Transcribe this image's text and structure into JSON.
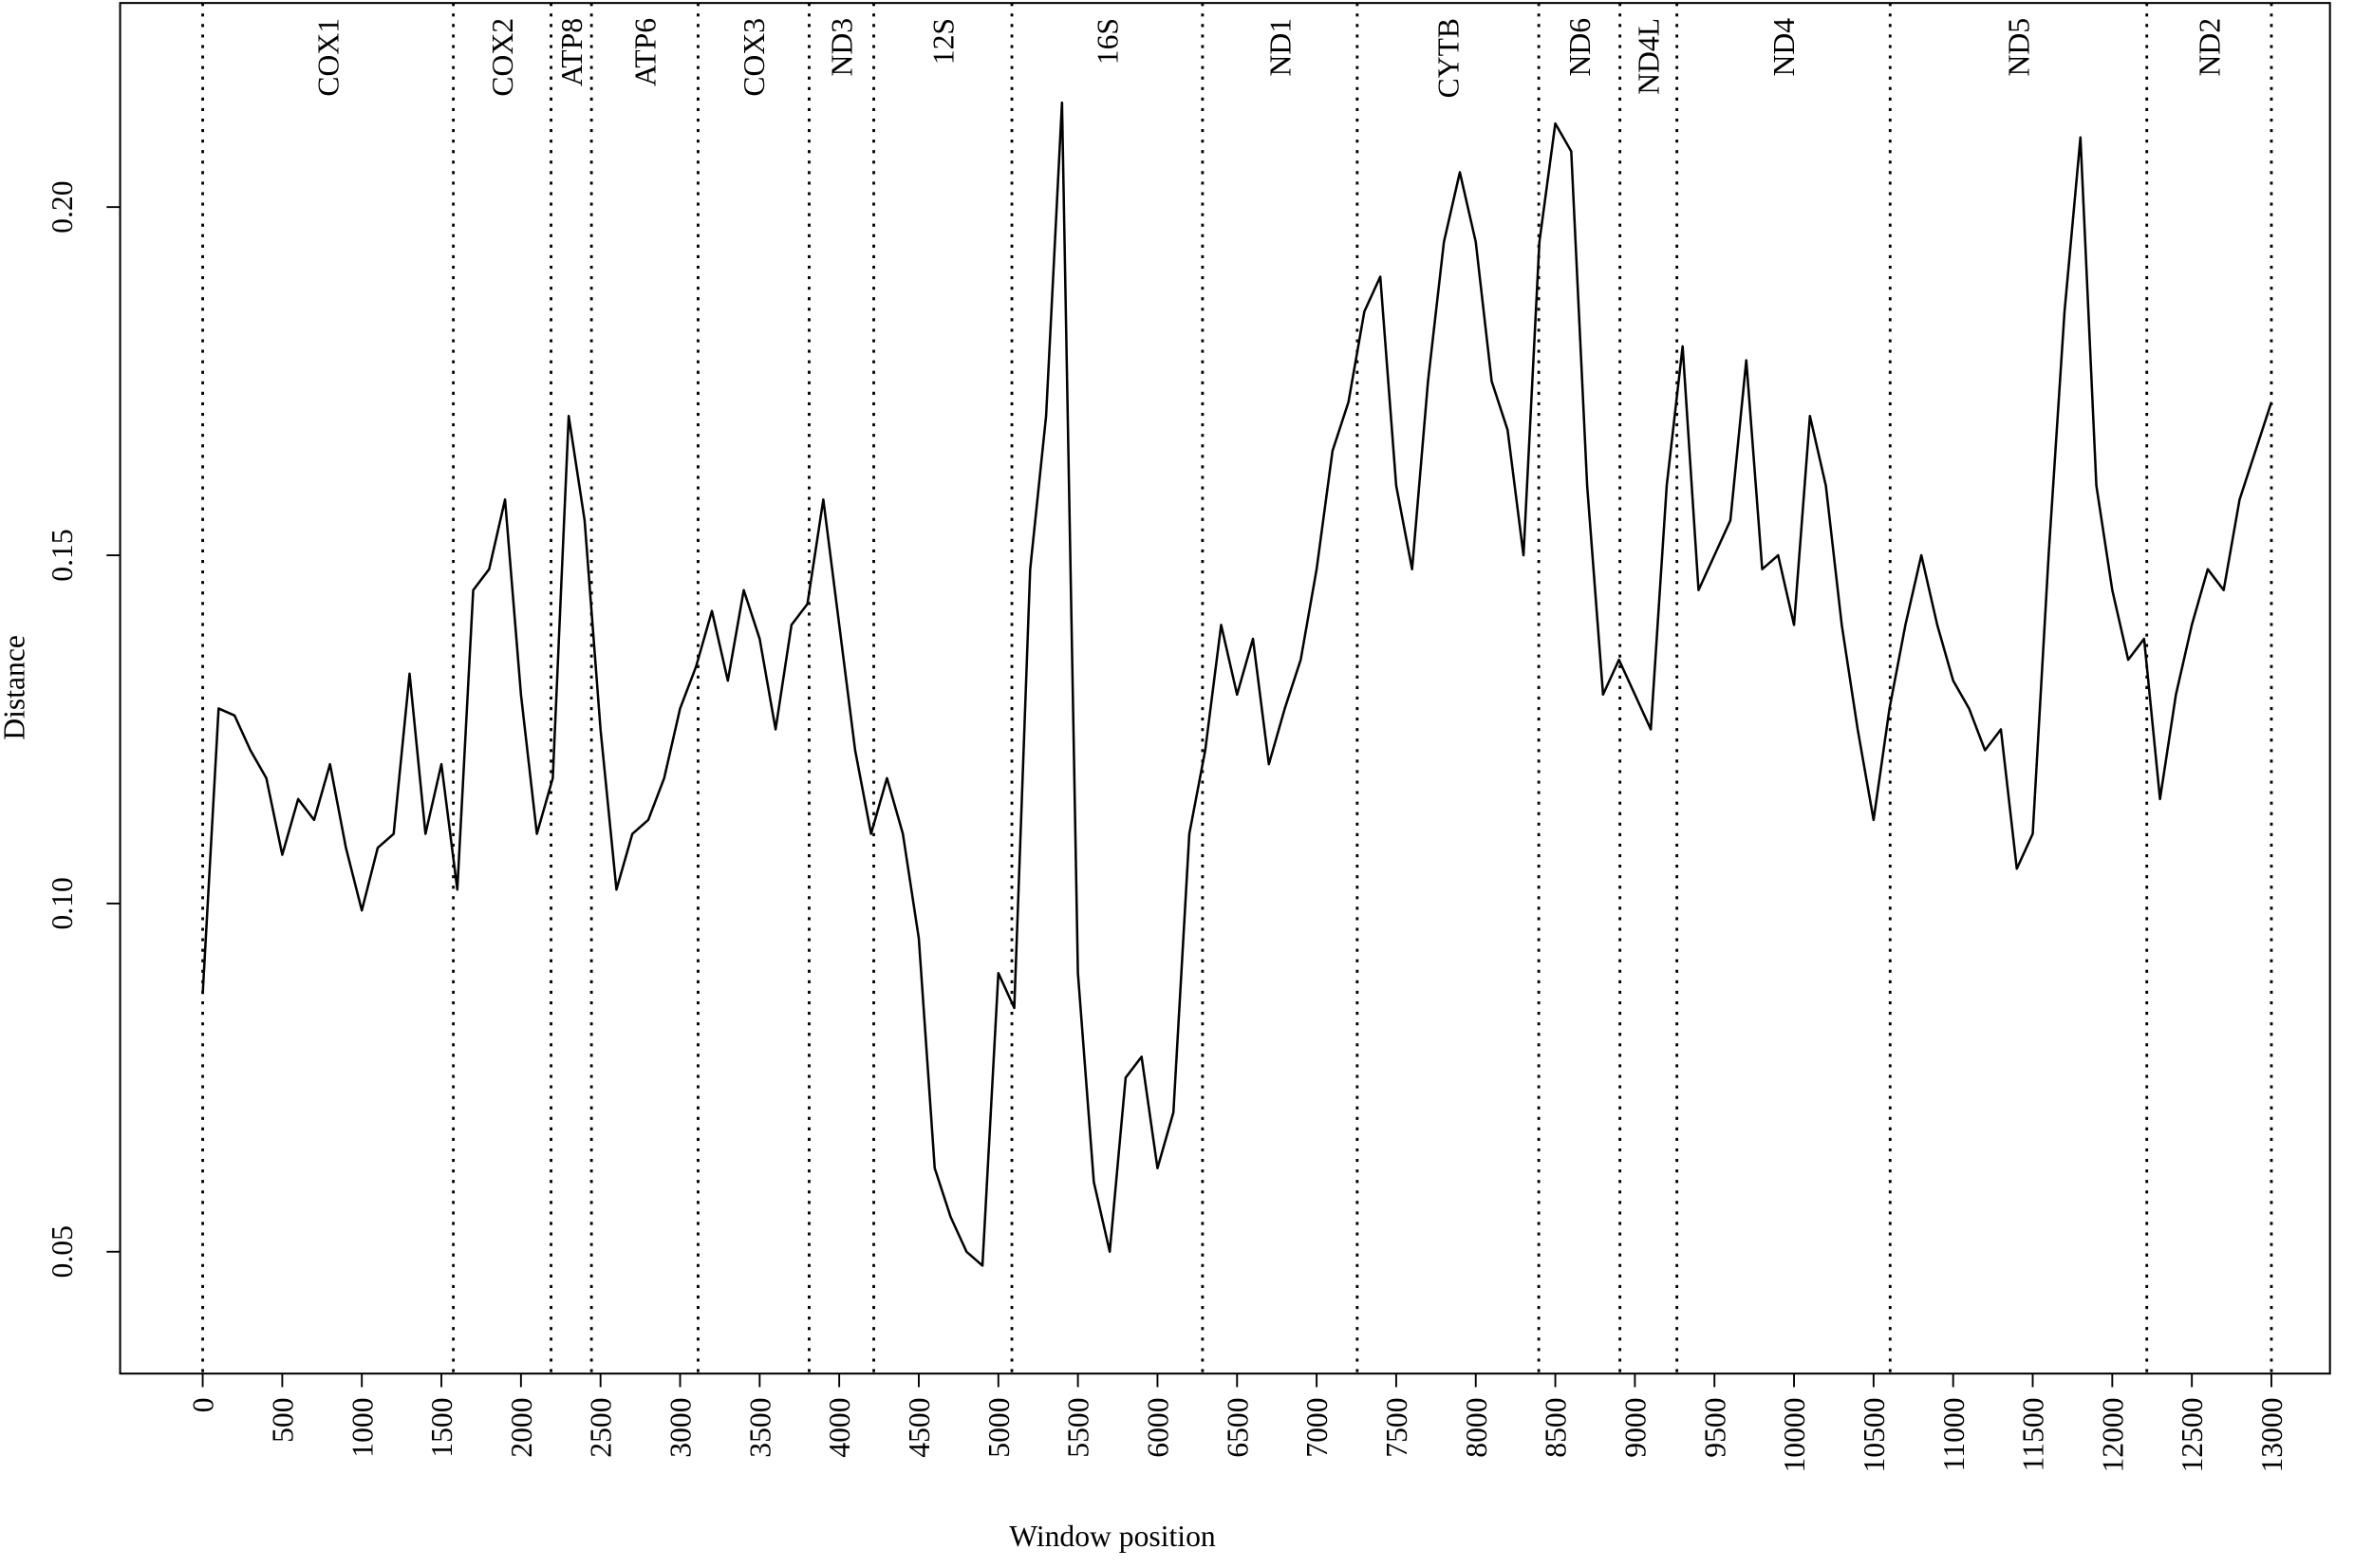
{
  "chart_data": {
    "type": "line",
    "xlabel": "Window position",
    "ylabel": "Distance",
    "color": "#000000",
    "xlim": [
      -519,
      13368
    ],
    "ylim": [
      0.0325,
      0.2293
    ],
    "xticks": [
      0,
      500,
      1000,
      1500,
      2000,
      2500,
      3000,
      3500,
      4000,
      4500,
      5000,
      5500,
      6000,
      6500,
      7000,
      7500,
      8000,
      8500,
      9000,
      9500,
      10000,
      10500,
      11000,
      11500,
      12000,
      12500,
      13000
    ],
    "yticks": [
      0.05,
      {
        "value": 0.1,
        "label": "0.10"
      },
      0.15,
      {
        "value": 0.2,
        "label": "0.20"
      }
    ],
    "boundaries": [
      0,
      1575,
      2189,
      2443,
      3113,
      3811,
      4217,
      5085,
      6283,
      7255,
      8396,
      8906,
      9264,
      10604,
      12217,
      13000
    ],
    "genes": [
      "COX1",
      "COX2",
      "ATP8",
      "ATP6",
      "COX3",
      "ND3",
      "12S",
      "16S",
      "ND1",
      "CYTB",
      "ND6",
      "ND4L",
      "ND4",
      "ND5",
      "ND2"
    ],
    "x": [
      0,
      100,
      200,
      300,
      400,
      500,
      600,
      700,
      800,
      900,
      1000,
      1100,
      1200,
      1300,
      1400,
      1500,
      1600,
      1700,
      1800,
      1900,
      2000,
      2100,
      2200,
      2300,
      2400,
      2500,
      2600,
      2700,
      2800,
      2900,
      3000,
      3100,
      3200,
      3300,
      3400,
      3500,
      3600,
      3700,
      3800,
      3900,
      4000,
      4100,
      4200,
      4300,
      4400,
      4500,
      4600,
      4700,
      4800,
      4900,
      5000,
      5100,
      5200,
      5300,
      5400,
      5500,
      5600,
      5700,
      5800,
      5900,
      6000,
      6100,
      6200,
      6300,
      6400,
      6500,
      6600,
      6700,
      6800,
      6900,
      7000,
      7100,
      7200,
      7300,
      7400,
      7500,
      7600,
      7700,
      7800,
      7900,
      8000,
      8100,
      8200,
      8300,
      8400,
      8500,
      8600,
      8700,
      8800,
      8900,
      9000,
      9100,
      9200,
      9300,
      9400,
      9500,
      9600,
      9700,
      9800,
      9900,
      10000,
      10100,
      10200,
      10300,
      10400,
      10500,
      10600,
      10700,
      10800,
      10900,
      11000,
      11100,
      11200,
      11300,
      11400,
      11500,
      11600,
      11700,
      11800,
      11900,
      12000,
      12100,
      12200,
      12300,
      12400,
      12500,
      12600,
      12700,
      12800,
      12900,
      13000
    ],
    "values": [
      0.087,
      0.128,
      0.127,
      0.122,
      0.118,
      0.107,
      0.115,
      0.112,
      0.12,
      0.108,
      0.099,
      0.108,
      0.11,
      0.133,
      0.11,
      0.12,
      0.102,
      0.145,
      0.148,
      0.158,
      0.13,
      0.11,
      0.118,
      0.17,
      0.155,
      0.125,
      0.102,
      0.11,
      0.112,
      0.118,
      0.128,
      0.134,
      0.142,
      0.132,
      0.145,
      0.138,
      0.125,
      0.14,
      0.143,
      0.158,
      0.14,
      0.122,
      0.11,
      0.118,
      0.11,
      0.095,
      0.062,
      0.055,
      0.05,
      0.048,
      0.09,
      0.085,
      0.148,
      0.17,
      0.215,
      0.09,
      0.06,
      0.05,
      0.075,
      0.078,
      0.062,
      0.07,
      0.11,
      0.122,
      0.14,
      0.13,
      0.138,
      0.12,
      0.128,
      0.135,
      0.148,
      0.165,
      0.172,
      0.185,
      0.19,
      0.16,
      0.148,
      0.175,
      0.195,
      0.205,
      0.195,
      0.175,
      0.168,
      0.15,
      0.195,
      0.212,
      0.208,
      0.16,
      0.13,
      0.135,
      0.13,
      0.125,
      0.16,
      0.18,
      0.145,
      0.15,
      0.155,
      0.178,
      0.148,
      0.15,
      0.14,
      0.17,
      0.16,
      0.14,
      0.125,
      0.112,
      0.128,
      0.14,
      0.15,
      0.14,
      0.132,
      0.128,
      0.122,
      0.125,
      0.105,
      0.11,
      0.15,
      0.185,
      0.21,
      0.16,
      0.145,
      0.135,
      0.138,
      0.115,
      0.13,
      0.14,
      0.148,
      0.145,
      0.158,
      0.165,
      0.172
    ]
  }
}
